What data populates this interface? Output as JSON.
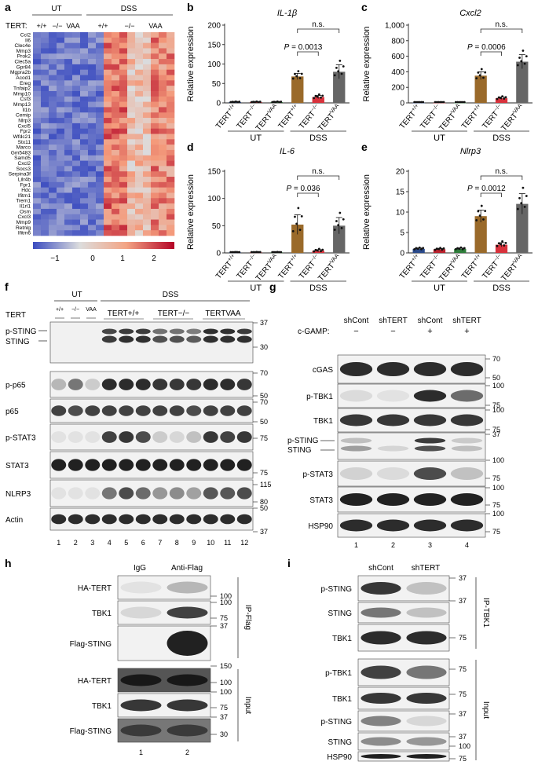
{
  "panel_labels": [
    "a",
    "b",
    "c",
    "d",
    "e",
    "f",
    "g",
    "h",
    "i"
  ],
  "panel_a": {
    "tert_label": "TERT:",
    "groups": [
      "UT",
      "DSS"
    ],
    "genotypes": [
      "+/+",
      "−/−",
      "VAA",
      "+/+",
      "−/−",
      "VAA"
    ],
    "genes": [
      "Ccl2",
      "Il6",
      "Clec4e",
      "Mmp3",
      "Prok2",
      "Clec5a",
      "Gpr84",
      "Mgpra2b",
      "Acod1",
      "Ereg",
      "Tnfaip2",
      "Mmp10",
      "Csf3",
      "Mmp13",
      "Il1b",
      "Cemip",
      "Nlrp3",
      "Cxcl5",
      "Fpr2",
      "Wfdc21",
      "Stx11",
      "Marco",
      "Gm5483",
      "Samd5",
      "Cxcl2",
      "Socs3",
      "Serpina3f",
      "Lilr4b",
      "Fpr1",
      "Hdc",
      "Ifitm1",
      "Trem1",
      "Il1rl1",
      "Osm",
      "Cxcl3",
      "Mmp9",
      "Retnlg",
      "Ifitm6"
    ],
    "colorbar_ticks": [
      "−1",
      "0",
      "1",
      "2"
    ]
  },
  "charts": {
    "ylabel": "Relative expression",
    "x_tick_labels": [
      "TERT+/+",
      "TERT−/−",
      "TERTVAA",
      "TERT+/+",
      "TERT−/−",
      "TERTVAA"
    ],
    "group_labels": [
      "UT",
      "DSS"
    ],
    "ns_label": "n.s."
  },
  "chart_data": [
    {
      "panel": "b",
      "type": "bar",
      "title": "IL-1β",
      "ylim": [
        0,
        200
      ],
      "yticks": [
        "0",
        "50",
        "100",
        "150",
        "200"
      ],
      "values": [
        2,
        2,
        2,
        68,
        15,
        80
      ],
      "errors": [
        1,
        1,
        1,
        8,
        4,
        18
      ],
      "colors": [
        "#2a4a8a",
        "#b8202c",
        "#2e7d3a",
        "#9a6a2a",
        "#d8323c",
        "#666666"
      ],
      "p_label": "P = 0.0013"
    },
    {
      "panel": "c",
      "type": "bar",
      "title": "Cxcl2",
      "ylim": [
        0,
        1000
      ],
      "yticks": [
        "0",
        "200",
        "400",
        "600",
        "800",
        "1,000"
      ],
      "values": [
        3,
        3,
        3,
        350,
        60,
        530
      ],
      "errors": [
        1,
        1,
        1,
        50,
        15,
        90
      ],
      "colors": [
        "#2a4a8a",
        "#b8202c",
        "#2e7d3a",
        "#9a6a2a",
        "#d8323c",
        "#666666"
      ],
      "p_label": "P = 0.0006"
    },
    {
      "panel": "d",
      "type": "bar",
      "title": "IL-6",
      "ylim": [
        0,
        150
      ],
      "yticks": [
        "0",
        "50",
        "100",
        "150"
      ],
      "values": [
        1,
        1,
        1,
        52,
        4,
        50
      ],
      "errors": [
        0.5,
        0.5,
        0.5,
        18,
        2,
        15
      ],
      "colors": [
        "#2a4a8a",
        "#b8202c",
        "#2e7d3a",
        "#9a6a2a",
        "#d8323c",
        "#666666"
      ],
      "p_label": "P = 0.036"
    },
    {
      "panel": "e",
      "type": "bar",
      "title": "Nlrp3",
      "ylim": [
        0,
        20
      ],
      "yticks": [
        "0",
        "5",
        "10",
        "15",
        "20"
      ],
      "values": [
        1,
        0.9,
        1,
        9,
        2,
        12
      ],
      "errors": [
        0.2,
        0.2,
        0.2,
        1.5,
        0.5,
        2.5
      ],
      "colors": [
        "#2a4a8a",
        "#b8202c",
        "#2e7d3a",
        "#9a6a2a",
        "#d8323c",
        "#666666"
      ],
      "p_label": "P = 0.0012"
    }
  ],
  "panel_f": {
    "tert_label": "TERT",
    "ut_label": "UT",
    "dss_label": "DSS",
    "ut_genotypes": [
      "+/+",
      "−/−",
      "VAA"
    ],
    "dss_genotypes": [
      "TERT+/+",
      "TERT−/−",
      "TERTVAA"
    ],
    "rows": [
      "p-STING",
      "STING",
      "p-p65",
      "p65",
      "p-STAT3",
      "STAT3",
      "NLRP3",
      "Actin"
    ],
    "mw": [
      "37",
      "30",
      "70",
      "50",
      "70",
      "50",
      "75",
      "75",
      "115",
      "80",
      "50",
      "37"
    ],
    "lanes": [
      "1",
      "2",
      "3",
      "4",
      "5",
      "6",
      "7",
      "8",
      "9",
      "10",
      "11",
      "12"
    ]
  },
  "panel_g": {
    "cgamp_label": "c-GAMP:",
    "conditions": [
      "shCont",
      "shTERT",
      "shCont",
      "shTERT"
    ],
    "cgamp_signs": [
      "−",
      "−",
      "+",
      "+"
    ],
    "rows": [
      "cGAS",
      "p-TBK1",
      "TBK1",
      "p-STING",
      "STING",
      "p-STAT3",
      "STAT3",
      "HSP90"
    ],
    "mw": [
      "70",
      "50",
      "100",
      "75",
      "100",
      "75",
      "37",
      "100",
      "75",
      "100",
      "75",
      "100",
      "75"
    ],
    "lanes": [
      "1",
      "2",
      "3",
      "4"
    ]
  },
  "panel_h": {
    "columns": [
      "IgG",
      "Anti-Flag"
    ],
    "rows_ip": [
      "HA-TERT",
      "TBK1",
      "Flag-STING"
    ],
    "rows_input": [
      "HA-TERT",
      "TBK1",
      "Flag-STING"
    ],
    "ip_label": "IP-Flag",
    "input_label": "Input",
    "mw_ip": [
      "100",
      "100",
      "75",
      "37"
    ],
    "mw_input": [
      "150",
      "100",
      "100",
      "75",
      "37",
      "30"
    ],
    "lanes": [
      "1",
      "2"
    ]
  },
  "panel_i": {
    "columns": [
      "shCont",
      "shTERT"
    ],
    "rows_ip": [
      "p-STING",
      "STING",
      "TBK1"
    ],
    "rows_input": [
      "p-TBK1",
      "TBK1",
      "p-STING",
      "STING",
      "HSP90"
    ],
    "ip_label": "IP-TBK1",
    "input_label": "Input",
    "mw_ip": [
      "37",
      "37",
      "75"
    ],
    "mw_input": [
      "75",
      "75",
      "37",
      "37",
      "100",
      "75"
    ],
    "lanes": [
      "1",
      "2"
    ]
  }
}
